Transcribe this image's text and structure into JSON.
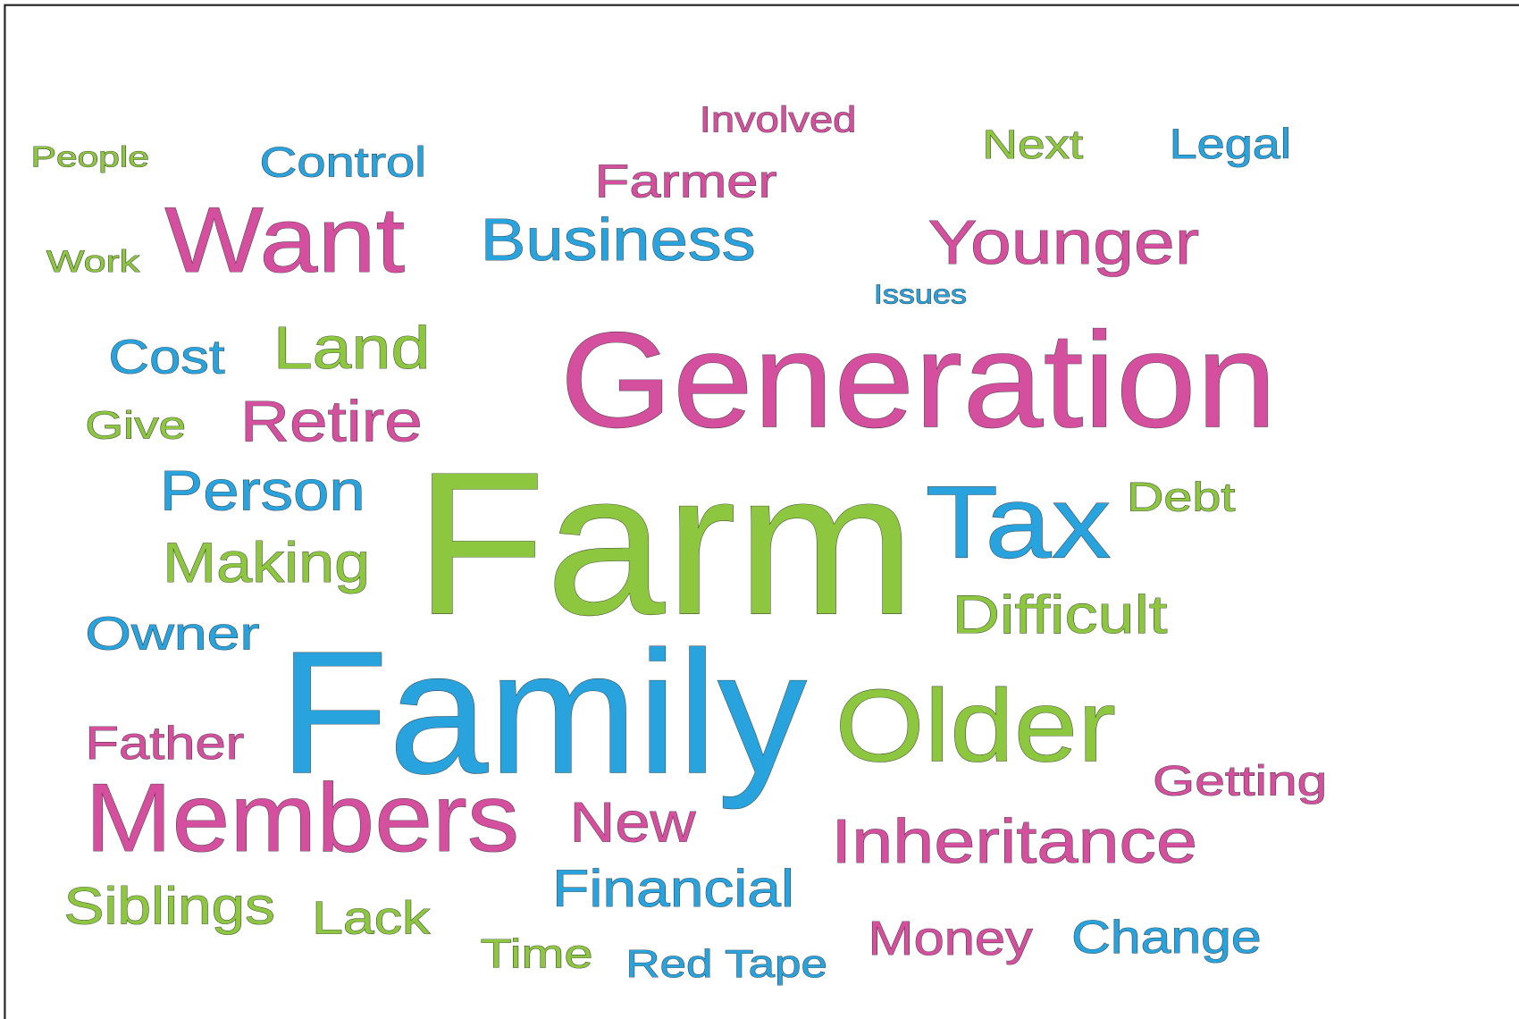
{
  "words": [
    {
      "text": "People",
      "color": "#8dc63f"
    },
    {
      "text": "Control",
      "color": "#29a3dd"
    },
    {
      "text": "Involved",
      "color": "#d4509f"
    },
    {
      "text": "Farmer",
      "color": "#d4509f"
    },
    {
      "text": "Next",
      "color": "#8dc63f"
    },
    {
      "text": "Legal",
      "color": "#29a3dd"
    },
    {
      "text": "Work",
      "color": "#8dc63f"
    },
    {
      "text": "Want",
      "color": "#d4509f"
    },
    {
      "text": "Business",
      "color": "#29a3dd"
    },
    {
      "text": "Younger",
      "color": "#d4509f"
    },
    {
      "text": "Issues",
      "color": "#29a3dd"
    },
    {
      "text": "Cost",
      "color": "#29a3dd"
    },
    {
      "text": "Land",
      "color": "#8dc63f"
    },
    {
      "text": "Generation",
      "color": "#d4509f"
    },
    {
      "text": "Give",
      "color": "#8dc63f"
    },
    {
      "text": "Retire",
      "color": "#d4509f"
    },
    {
      "text": "Person",
      "color": "#29a3dd"
    },
    {
      "text": "Farm",
      "color": "#8dc63f"
    },
    {
      "text": "Tax",
      "color": "#29a3dd"
    },
    {
      "text": "Debt",
      "color": "#8dc63f"
    },
    {
      "text": "Making",
      "color": "#8dc63f"
    },
    {
      "text": "Difficult",
      "color": "#8dc63f"
    },
    {
      "text": "Owner",
      "color": "#29a3dd"
    },
    {
      "text": "Family",
      "color": "#29a3dd"
    },
    {
      "text": "Older",
      "color": "#8dc63f"
    },
    {
      "text": "Father",
      "color": "#d4509f"
    },
    {
      "text": "Getting",
      "color": "#d4509f"
    },
    {
      "text": "Members",
      "color": "#d4509f"
    },
    {
      "text": "New",
      "color": "#d4509f"
    },
    {
      "text": "Inheritance",
      "color": "#d4509f"
    },
    {
      "text": "Financial",
      "color": "#29a3dd"
    },
    {
      "text": "Siblings",
      "color": "#8dc63f"
    },
    {
      "text": "Lack",
      "color": "#8dc63f"
    },
    {
      "text": "Money",
      "color": "#d4509f"
    },
    {
      "text": "Change",
      "color": "#29a3dd"
    },
    {
      "text": "Time",
      "color": "#8dc63f"
    },
    {
      "text": "Red Tape",
      "color": "#29a3dd"
    }
  ]
}
